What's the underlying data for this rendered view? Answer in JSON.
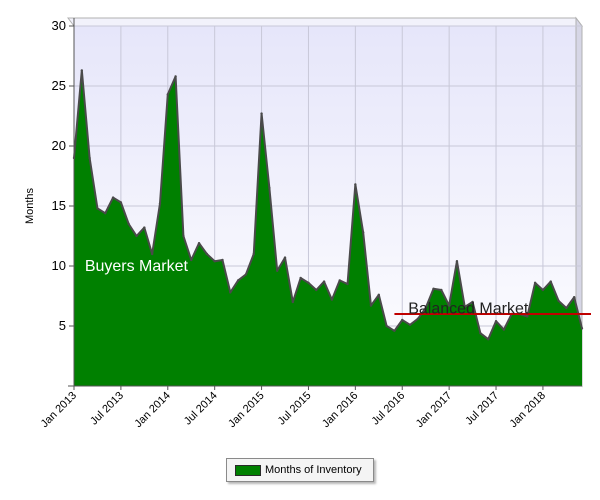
{
  "chart_data": {
    "type": "area",
    "ylabel": "Months",
    "xlabel": "",
    "ylim": [
      0,
      30
    ],
    "yticks": [
      5,
      10,
      15,
      20,
      25,
      30
    ],
    "x_tick_labels": [
      "Jan 2013",
      "Jul 2013",
      "Jan 2014",
      "Jul 2014",
      "Jan 2015",
      "Jul 2015",
      "Jan 2016",
      "Jul 2016",
      "Jan 2017",
      "Jul 2017",
      "Jan 2018"
    ],
    "x": [
      "2013-01",
      "2013-02",
      "2013-03",
      "2013-04",
      "2013-05",
      "2013-06",
      "2013-07",
      "2013-08",
      "2013-09",
      "2013-10",
      "2013-11",
      "2013-12",
      "2014-01",
      "2014-02",
      "2014-03",
      "2014-04",
      "2014-05",
      "2014-06",
      "2014-07",
      "2014-08",
      "2014-09",
      "2014-10",
      "2014-11",
      "2014-12",
      "2015-01",
      "2015-02",
      "2015-03",
      "2015-04",
      "2015-05",
      "2015-06",
      "2015-07",
      "2015-08",
      "2015-09",
      "2015-10",
      "2015-11",
      "2015-12",
      "2016-01",
      "2016-02",
      "2016-03",
      "2016-04",
      "2016-05",
      "2016-06",
      "2016-07",
      "2016-08",
      "2016-09",
      "2016-10",
      "2016-11",
      "2016-12",
      "2017-01",
      "2017-02",
      "2017-03",
      "2017-04",
      "2017-05",
      "2017-06",
      "2017-07",
      "2017-08",
      "2017-09",
      "2017-10",
      "2017-11",
      "2017-12",
      "2018-01",
      "2018-02",
      "2018-03",
      "2018-04",
      "2018-05",
      "2018-06"
    ],
    "series": [
      {
        "name": "Months of Inventory",
        "color": "#008000",
        "values": [
          19,
          26.3,
          19,
          14.8,
          14.4,
          15.7,
          15.3,
          13.5,
          12.5,
          13.2,
          11,
          15.2,
          24.3,
          25.8,
          12.5,
          10.5,
          11.9,
          11,
          10.4,
          10.5,
          7.8,
          8.8,
          9.3,
          11,
          22.7,
          16.5,
          9.6,
          10.7,
          7,
          9,
          8.6,
          8,
          8.7,
          7.2,
          8.8,
          8.5,
          16.8,
          12.8,
          6.7,
          7.6,
          5,
          4.6,
          5.5,
          5.1,
          5.6,
          6.5,
          8.1,
          8,
          6.7,
          10.4,
          6.6,
          7,
          4.4,
          3.9,
          5.4,
          4.7,
          6,
          6,
          5.8,
          8.6,
          8,
          8.7,
          7.1,
          6.5,
          7.4,
          4.8
        ]
      }
    ],
    "annotations": [
      {
        "text": "Buyers Market",
        "x": "2013-02",
        "y": 10
      },
      {
        "text": "Balanced Market",
        "x": "2016-07",
        "y": 6.3
      }
    ],
    "reference_line": {
      "y": 6,
      "x_start": "2016-06",
      "x_end": "2018-06",
      "color": "#c00000"
    },
    "grid": true,
    "legend_position": "bottom-center",
    "colors": {
      "fill": "#008000",
      "plot_top": "#e6e6fa",
      "plot_bottom": "#fefeff",
      "reference": "#c00000"
    }
  }
}
